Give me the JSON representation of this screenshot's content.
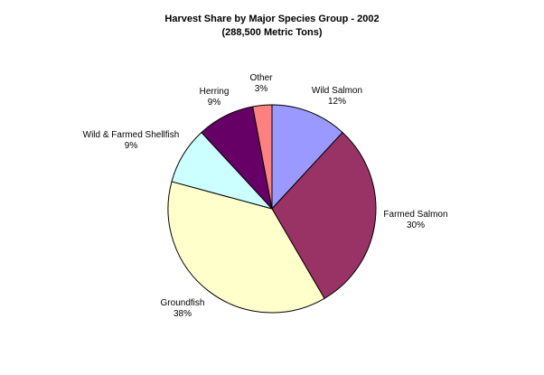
{
  "chart_data": {
    "type": "pie",
    "title": "Harvest Share by Major Species Group - 2002",
    "subtitle": "(288,500 Metric Tons)",
    "slices": [
      {
        "label": "Wild Salmon",
        "value_label": "12%",
        "value": 12,
        "color": "#9999ff"
      },
      {
        "label": "Farmed Salmon",
        "value_label": "30%",
        "value": 30,
        "color": "#993366"
      },
      {
        "label": "Groundfish",
        "value_label": "38%",
        "value": 38,
        "color": "#ffffcc"
      },
      {
        "label": "Wild & Farmed Shellfish",
        "value_label": "9%",
        "value": 9,
        "color": "#ccffff"
      },
      {
        "label": "Herring",
        "value_label": "9%",
        "value": 9,
        "color": "#660066"
      },
      {
        "label": "Other",
        "value_label": "3%",
        "value": 3,
        "color": "#ff8080"
      }
    ],
    "start": "top",
    "direction": "clockwise",
    "legend": "none",
    "labels": "outside"
  }
}
